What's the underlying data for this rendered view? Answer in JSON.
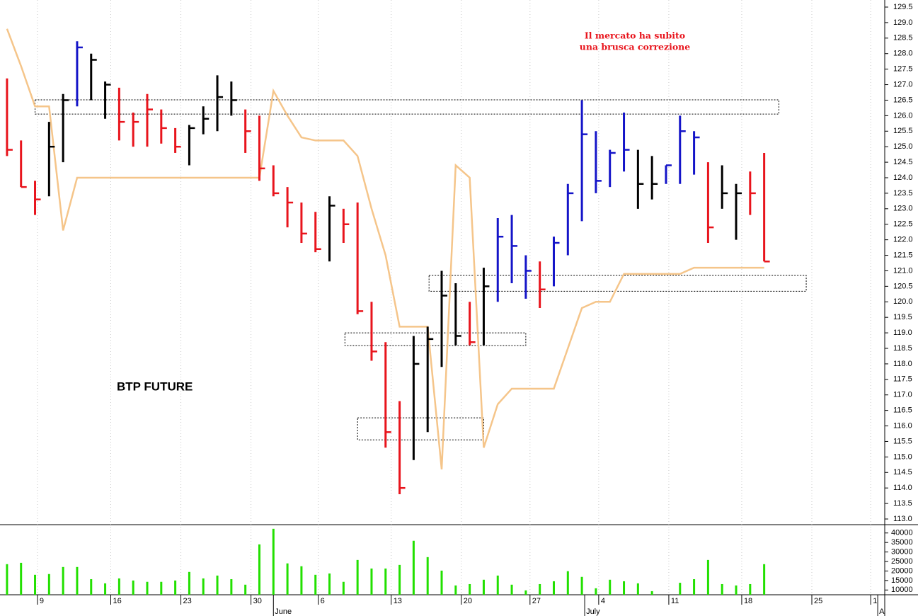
{
  "chart_data": {
    "type": "ohlc",
    "label": "BTP FUTURE",
    "annotation": [
      "Il mercato ha subito",
      "una brusca correzione"
    ],
    "high": [
      127.2,
      125.2,
      123.9,
      125.8,
      126.7,
      128.4,
      128.0,
      127.1,
      126.9,
      126.1,
      126.7,
      126.2,
      125.6,
      125.7,
      126.3,
      127.3,
      127.1,
      126.2,
      126.0,
      124.4,
      123.7,
      123.2,
      122.9,
      123.4,
      123.0,
      123.2,
      120.0,
      118.7,
      116.8,
      118.9,
      119.2,
      121.0,
      120.6,
      120.0,
      121.1,
      122.7,
      122.8,
      121.5,
      121.3,
      122.1,
      123.8,
      126.5,
      125.5,
      124.9,
      126.1,
      124.9,
      124.7,
      124.4,
      126.0,
      125.5,
      124.5,
      124.4,
      123.8,
      124.2,
      124.8
    ],
    "low": [
      124.7,
      123.7,
      122.8,
      123.4,
      124.5,
      126.3,
      126.5,
      125.9,
      125.2,
      125.0,
      125.0,
      125.1,
      124.8,
      124.4,
      125.4,
      125.5,
      126.0,
      124.8,
      123.9,
      123.4,
      122.4,
      121.9,
      121.6,
      121.3,
      121.9,
      119.6,
      118.1,
      115.3,
      113.8,
      114.9,
      115.8,
      117.9,
      118.6,
      118.6,
      118.6,
      120.0,
      120.6,
      120.1,
      119.8,
      120.5,
      121.5,
      122.6,
      123.5,
      123.7,
      124.2,
      123.0,
      123.3,
      123.8,
      123.8,
      124.1,
      121.9,
      123.0,
      122.0,
      122.8,
      121.3
    ],
    "close": [
      124.9,
      123.7,
      123.3,
      125.0,
      126.5,
      128.2,
      127.8,
      127.0,
      125.8,
      125.8,
      126.2,
      125.6,
      125.0,
      125.6,
      125.9,
      126.6,
      126.5,
      125.5,
      124.3,
      123.5,
      123.2,
      122.2,
      121.7,
      123.1,
      122.5,
      119.7,
      118.4,
      115.8,
      114.0,
      118.0,
      118.8,
      120.2,
      118.9,
      118.7,
      120.5,
      122.1,
      121.8,
      121.0,
      120.4,
      121.9,
      123.5,
      125.4,
      123.9,
      124.8,
      124.9,
      123.8,
      123.8,
      124.4,
      125.5,
      125.3,
      122.4,
      123.5,
      123.5,
      123.5,
      121.3
    ],
    "bar_colors": [
      "#e8141c",
      "#e8141c",
      "#e8141c",
      "#000000",
      "#000000",
      "#1414c8",
      "#000000",
      "#000000",
      "#e8141c",
      "#e8141c",
      "#e8141c",
      "#e8141c",
      "#e8141c",
      "#000000",
      "#000000",
      "#000000",
      "#000000",
      "#e8141c",
      "#e8141c",
      "#e8141c",
      "#e8141c",
      "#e8141c",
      "#e8141c",
      "#000000",
      "#e8141c",
      "#e8141c",
      "#e8141c",
      "#e8141c",
      "#e8141c",
      "#000000",
      "#000000",
      "#000000",
      "#000000",
      "#e8141c",
      "#000000",
      "#1414c8",
      "#1414c8",
      "#1414c8",
      "#e8141c",
      "#1414c8",
      "#1414c8",
      "#1414c8",
      "#1414c8",
      "#1414c8",
      "#1414c8",
      "#000000",
      "#000000",
      "#1414c8",
      "#1414c8",
      "#1414c8",
      "#e8141c",
      "#000000",
      "#000000",
      "#e8141c",
      "#e8141c"
    ],
    "line": {
      "color": "#f5c58a",
      "values": [
        128.8,
        127.6,
        126.3,
        126.3,
        122.3,
        124.0,
        124.0,
        124.0,
        124.0,
        124.0,
        124.0,
        124.0,
        124.0,
        124.0,
        124.0,
        124.0,
        124.0,
        124.0,
        124.0,
        126.8,
        126.0,
        125.3,
        125.2,
        125.2,
        125.2,
        124.7,
        123.0,
        121.5,
        119.2,
        119.2,
        119.2,
        114.6,
        124.4,
        124.0,
        115.3,
        116.7,
        117.2,
        117.2,
        117.2,
        117.2,
        118.5,
        119.8,
        120.0,
        120.0,
        120.9,
        120.9,
        120.9,
        120.9,
        120.9,
        121.1,
        121.1,
        121.1,
        121.1,
        121.1,
        121.1
      ]
    },
    "zones": [
      {
        "x": [
          2.0,
          55.05
        ],
        "y": [
          126.05,
          126.51
        ]
      },
      {
        "x": [
          30.1,
          57.0
        ],
        "y": [
          120.34,
          120.85
        ]
      },
      {
        "x": [
          24.1,
          37.0
        ],
        "y": [
          118.59,
          119.0
        ]
      },
      {
        "x": [
          25.0,
          34.0
        ],
        "y": [
          115.55,
          116.26
        ]
      }
    ],
    "xlim": [
      -0.5,
      62.6
    ],
    "ylim": [
      113.0,
      129.5
    ],
    "xticks": [
      {
        "value": 2.17,
        "label": "9"
      },
      {
        "value": 7.4,
        "label": "16"
      },
      {
        "value": 12.4,
        "label": "23"
      },
      {
        "value": 17.4,
        "label": "30"
      },
      {
        "value": 22.2,
        "label": "6"
      },
      {
        "value": 27.4,
        "label": "13"
      },
      {
        "value": 32.4,
        "label": "20"
      },
      {
        "value": 37.3,
        "label": "27"
      },
      {
        "value": 42.2,
        "label": "4"
      },
      {
        "value": 47.2,
        "label": "11"
      },
      {
        "value": 52.4,
        "label": "18"
      },
      {
        "value": 57.4,
        "label": "25"
      },
      {
        "value": 61.6,
        "label": "1"
      }
    ],
    "months": [
      {
        "value": 19.0,
        "label": "June"
      },
      {
        "value": 41.2,
        "label": "July"
      },
      {
        "value": 62.1,
        "label": "A"
      }
    ],
    "yticks": [
      {
        "value": 113,
        "label": "113.0"
      },
      113.5,
      {
        "value": 114,
        "label": "114.0"
      },
      114.5,
      {
        "value": 115,
        "label": "115.0"
      },
      115.5,
      {
        "value": 116,
        "label": "116.0"
      },
      116.5,
      {
        "value": 117,
        "label": "117.0"
      },
      117.5,
      {
        "value": 118,
        "label": "118.0"
      },
      118.5,
      {
        "value": 119,
        "label": "119.0"
      },
      119.5,
      {
        "value": 120,
        "label": "120.0"
      },
      120.5,
      {
        "value": 121,
        "label": "121.0"
      },
      121.5,
      {
        "value": 122,
        "label": "122.0"
      },
      122.5,
      {
        "value": 123,
        "label": "123.0"
      },
      123.5,
      {
        "value": 124,
        "label": "124.0"
      },
      124.5,
      {
        "value": 125,
        "label": "125.0"
      },
      125.5,
      {
        "value": 126,
        "label": "126.0"
      },
      126.5,
      {
        "value": 127,
        "label": "127.0"
      },
      127.5,
      {
        "value": 128,
        "label": "128.0"
      },
      128.5,
      {
        "value": 129,
        "label": "129.0"
      },
      129.5
    ],
    "volume": {
      "color": "#22e000",
      "ylim": [
        7500,
        44000
      ],
      "yticks": [
        10000,
        15000,
        20000,
        25000,
        30000,
        35000,
        40000
      ],
      "values": [
        23600,
        24300,
        18000,
        18400,
        22100,
        22100,
        15700,
        13500,
        16100,
        15000,
        14300,
        14300,
        15000,
        19500,
        16100,
        17600,
        15700,
        12800,
        34000,
        42200,
        24000,
        22500,
        18000,
        18700,
        14300,
        25800,
        21300,
        21300,
        23200,
        35900,
        27300,
        20200,
        12400,
        13100,
        15400,
        17600,
        12800,
        9800,
        13100,
        14600,
        19900,
        16900,
        10900,
        15400,
        14600,
        13500,
        9400,
        null,
        13800,
        15700,
        25800,
        13100,
        12400,
        13100,
        23600
      ]
    },
    "grid": true
  }
}
